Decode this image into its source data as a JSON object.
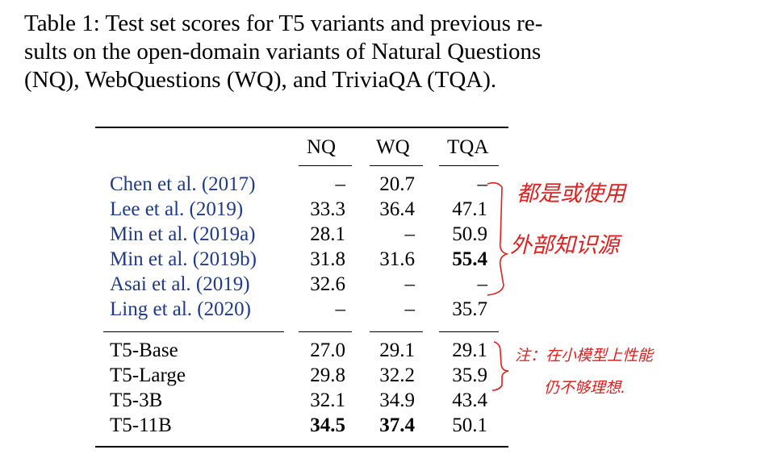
{
  "caption": {
    "lines": [
      "Table 1: Test set scores for T5 variants and previous re-",
      "sults on the open-domain variants of Natural Questions",
      "(NQ), WebQuestions (WQ), and TriviaQA (TQA)."
    ]
  },
  "table": {
    "columns": [
      "NQ",
      "WQ",
      "TQA"
    ],
    "prior_rows": [
      {
        "model": "Chen et al. (2017)",
        "nq": "–",
        "wq": "20.7",
        "tqa": "–"
      },
      {
        "model": "Lee et al. (2019)",
        "nq": "33.3",
        "wq": "36.4",
        "tqa": "47.1"
      },
      {
        "model": "Min et al. (2019a)",
        "nq": "28.1",
        "wq": "–",
        "tqa": "50.9"
      },
      {
        "model": "Min et al. (2019b)",
        "nq": "31.8",
        "wq": "31.6",
        "tqa": "55.4"
      },
      {
        "model": "Asai et al. (2019)",
        "nq": "32.6",
        "wq": "–",
        "tqa": "–"
      },
      {
        "model": "Ling et al. (2020)",
        "nq": "–",
        "wq": "–",
        "tqa": "35.7"
      }
    ],
    "t5_rows": [
      {
        "model": "T5-Base",
        "nq": "27.0",
        "wq": "29.1",
        "tqa": "29.1"
      },
      {
        "model": "T5-Large",
        "nq": "29.8",
        "wq": "32.2",
        "tqa": "35.9"
      },
      {
        "model": "T5-3B",
        "nq": "32.1",
        "wq": "34.9",
        "tqa": "43.4"
      },
      {
        "model": "T5-11B",
        "nq": "34.5",
        "wq": "37.4",
        "tqa": "50.1"
      }
    ],
    "bold_cells": [
      "Min et al. (2019b)|tqa",
      "T5-11B|nq",
      "T5-11B|wq"
    ]
  },
  "annotations": {
    "note1": [
      "都是或使用",
      "外部知识源"
    ],
    "note2": [
      "注：在小模型上性能",
      "仍不够理想."
    ],
    "color": "#e02020"
  }
}
